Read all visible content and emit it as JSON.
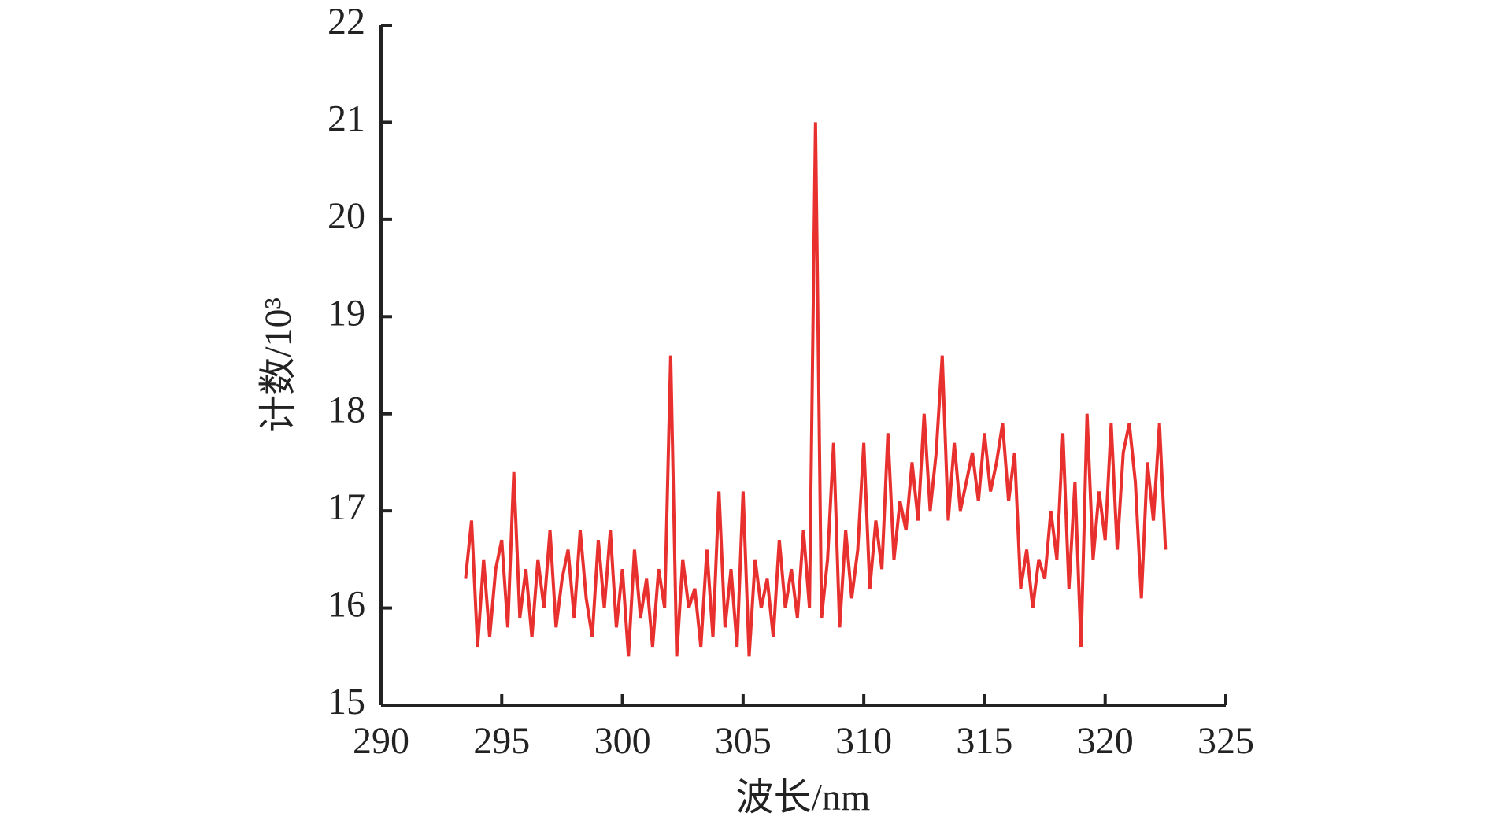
{
  "chart_data": {
    "type": "line",
    "xlabel": "波长/nm",
    "ylabel": "计数/10³",
    "xlim": [
      290,
      325
    ],
    "xticks": [
      290,
      295,
      300,
      305,
      310,
      315,
      320,
      325
    ],
    "ylim": [
      15,
      22
    ],
    "yticks": [
      15,
      16,
      17,
      18,
      19,
      20,
      21,
      22
    ],
    "x": [
      293.5,
      293.75,
      294,
      294.25,
      294.5,
      294.75,
      295,
      295.25,
      295.5,
      295.75,
      296,
      296.25,
      296.5,
      296.75,
      297,
      297.25,
      297.5,
      297.75,
      298,
      298.25,
      298.5,
      298.75,
      299,
      299.25,
      299.5,
      299.75,
      300,
      300.25,
      300.5,
      300.75,
      301,
      301.25,
      301.5,
      301.75,
      302,
      302.25,
      302.5,
      302.75,
      303,
      303.25,
      303.5,
      303.75,
      304,
      304.25,
      304.5,
      304.75,
      305,
      305.25,
      305.5,
      305.75,
      306,
      306.25,
      306.5,
      306.75,
      307,
      307.25,
      307.5,
      307.75,
      308,
      308.25,
      308.5,
      308.75,
      309,
      309.25,
      309.5,
      309.75,
      310,
      310.25,
      310.5,
      310.75,
      311,
      311.25,
      311.5,
      311.75,
      312,
      312.25,
      312.5,
      312.75,
      313,
      313.25,
      313.5,
      313.75,
      314,
      314.25,
      314.5,
      314.75,
      315,
      315.25,
      315.5,
      315.75,
      316,
      316.25,
      316.5,
      316.75,
      317,
      317.25,
      317.5,
      317.75,
      318,
      318.25,
      318.5,
      318.75,
      319,
      319.25,
      319.5,
      319.75,
      320,
      320.25,
      320.5,
      320.75,
      321,
      321.25,
      321.5,
      321.75,
      322,
      322.25,
      322.5
    ],
    "series": [
      {
        "color": "#e8312f",
        "values": [
          16.3,
          16.9,
          15.6,
          16.5,
          15.7,
          16.4,
          16.7,
          15.8,
          17.4,
          15.9,
          16.4,
          15.7,
          16.5,
          16.0,
          16.8,
          15.8,
          16.3,
          16.6,
          15.9,
          16.8,
          16.1,
          15.7,
          16.7,
          16.0,
          16.8,
          15.8,
          16.4,
          15.5,
          16.6,
          15.9,
          16.3,
          15.6,
          16.4,
          16.0,
          18.6,
          15.5,
          16.5,
          16.0,
          16.2,
          15.6,
          16.6,
          15.7,
          17.2,
          15.8,
          16.4,
          15.6,
          17.2,
          15.5,
          16.5,
          16.0,
          16.3,
          15.7,
          16.7,
          16.0,
          16.4,
          15.9,
          16.8,
          16.0,
          21.0,
          15.9,
          16.5,
          17.7,
          15.8,
          16.8,
          16.1,
          16.6,
          17.7,
          16.2,
          16.9,
          16.4,
          17.8,
          16.5,
          17.1,
          16.8,
          17.5,
          16.9,
          18.0,
          17.0,
          17.6,
          18.6,
          16.9,
          17.7,
          17.0,
          17.3,
          17.6,
          17.1,
          17.8,
          17.2,
          17.5,
          17.9,
          17.1,
          17.6,
          16.2,
          16.6,
          16.0,
          16.5,
          16.3,
          17.0,
          16.5,
          17.8,
          16.2,
          17.3,
          15.6,
          18.0,
          16.5,
          17.2,
          16.7,
          17.9,
          16.6,
          17.6,
          17.9,
          17.3,
          16.1,
          17.5,
          16.9,
          17.9,
          16.6
        ]
      }
    ]
  }
}
